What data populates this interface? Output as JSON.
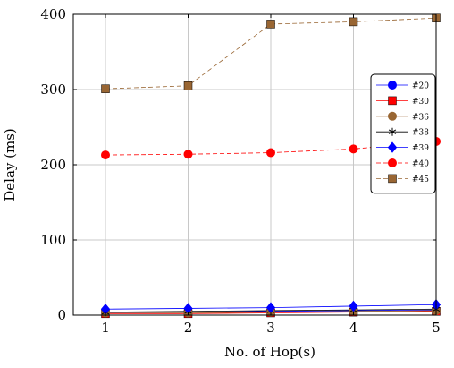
{
  "chart_data": {
    "type": "line",
    "xlabel": "No. of Hop(s)",
    "ylabel": "Delay (ms)",
    "xlim": [
      1,
      5
    ],
    "ylim": [
      0,
      400
    ],
    "x": [
      1,
      2,
      3,
      4,
      5
    ],
    "x_ticks": [
      "1",
      "2",
      "3",
      "4",
      "5"
    ],
    "y_ticks": [
      "0",
      "100",
      "200",
      "300",
      "400"
    ],
    "grid": true,
    "legend_position": "right",
    "series": [
      {
        "name": "#20",
        "values": [
          3,
          4,
          5,
          6,
          7
        ],
        "color": "#0000ff",
        "marker": "circle",
        "dash": "solid"
      },
      {
        "name": "#30",
        "values": [
          2,
          2,
          3,
          4,
          5
        ],
        "color": "#ff0000",
        "marker": "square",
        "dash": "solid"
      },
      {
        "name": "#36",
        "values": [
          3,
          3,
          4,
          5,
          6
        ],
        "color": "#996633",
        "marker": "circle",
        "dash": "solid"
      },
      {
        "name": "#38",
        "values": [
          4,
          5,
          6,
          7,
          8
        ],
        "color": "#000000",
        "marker": "star",
        "dash": "solid"
      },
      {
        "name": "#39",
        "values": [
          8,
          9,
          10,
          12,
          14
        ],
        "color": "#0000ff",
        "marker": "diamond",
        "dash": "solid"
      },
      {
        "name": "#40",
        "values": [
          213,
          214,
          216,
          221,
          231
        ],
        "color": "#ff0000",
        "marker": "circle",
        "dash": "dashed"
      },
      {
        "name": "#45",
        "values": [
          301,
          305,
          387,
          390,
          395
        ],
        "color": "#996633",
        "marker": "square",
        "dash": "dashed"
      }
    ]
  }
}
